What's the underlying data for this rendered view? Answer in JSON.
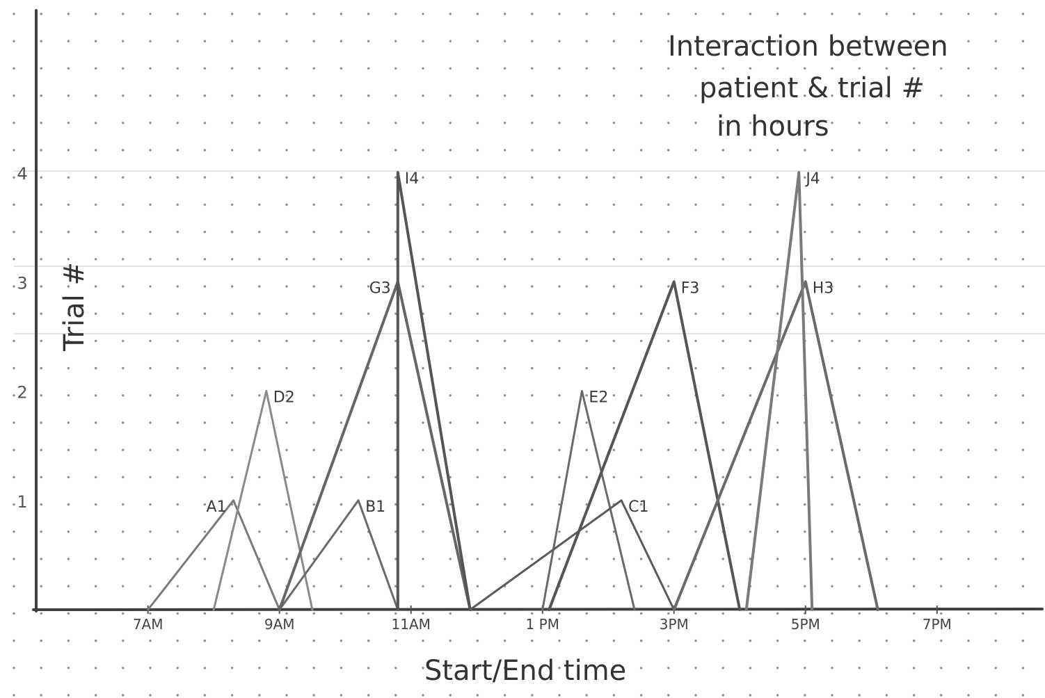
{
  "chart_data": {
    "type": "line",
    "title": "Interaction between patient & trial # in hours",
    "title_lines": [
      "Interaction between",
      "patient & trial #",
      "in hours"
    ],
    "xlabel": "Start/End time",
    "ylabel": "Trial #",
    "x_ticks": [
      {
        "hour": 7,
        "label": "7AM"
      },
      {
        "hour": 9,
        "label": "9AM"
      },
      {
        "hour": 11,
        "label": "11AM"
      },
      {
        "hour": 13,
        "label": "1 PM"
      },
      {
        "hour": 15,
        "label": "3PM"
      },
      {
        "hour": 17,
        "label": "5PM"
      },
      {
        "hour": 19,
        "label": "7PM"
      }
    ],
    "y_ticks": [
      {
        "value": 1,
        "label": "1"
      },
      {
        "value": 2,
        "label": "2"
      },
      {
        "value": 3,
        "label": "3"
      },
      {
        "value": 4,
        "label": "4"
      }
    ],
    "xlim": [
      5.3,
      20.6
    ],
    "ylim": [
      0,
      4
    ],
    "grid": "dot grid",
    "series": [
      {
        "name": "A1",
        "start": 7.0,
        "peak": 8.3,
        "end": 9.0,
        "value": 1,
        "color": "#7a7a7a"
      },
      {
        "name": "D2",
        "start": 8.0,
        "peak": 8.8,
        "end": 9.5,
        "value": 2,
        "color": "#8a8a8a"
      },
      {
        "name": "B1",
        "start": 9.0,
        "peak": 10.2,
        "end": 10.8,
        "value": 1,
        "color": "#6a6a6a"
      },
      {
        "name": "G3",
        "start": 9.0,
        "peak": 10.8,
        "end": 11.9,
        "value": 3,
        "color": "#666666"
      },
      {
        "name": "I4",
        "start": 10.8,
        "peak": 10.8,
        "end": 11.9,
        "value": 4,
        "color": "#555555"
      },
      {
        "name": "E2",
        "start": 13.0,
        "peak": 13.6,
        "end": 14.4,
        "value": 2,
        "color": "#6a6a6a"
      },
      {
        "name": "C1",
        "start": 11.9,
        "peak": 14.2,
        "end": 15.0,
        "value": 1,
        "color": "#5a5a5a"
      },
      {
        "name": "F3",
        "start": 13.1,
        "peak": 15.0,
        "end": 16.0,
        "value": 3,
        "color": "#555555"
      },
      {
        "name": "H3",
        "start": 15.0,
        "peak": 17.0,
        "end": 18.1,
        "value": 3,
        "color": "#6a6a6a"
      },
      {
        "name": "J4",
        "start": 16.1,
        "peak": 16.9,
        "end": 17.1,
        "value": 4,
        "color": "#7a7a7a"
      }
    ]
  }
}
